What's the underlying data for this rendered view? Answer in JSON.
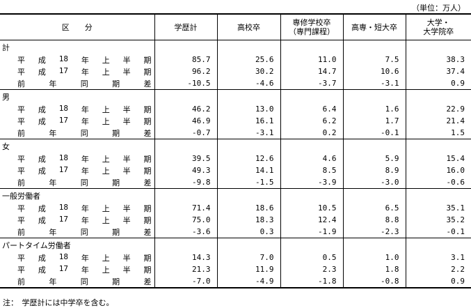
{
  "unit": "（単位：万人）",
  "header": {
    "category": "区　　分",
    "columns": [
      "学歴計",
      "高校卒",
      "専修学校卒（専門課程）",
      "高専・短大卒",
      "大学・大学院卒"
    ]
  },
  "row_labels": {
    "h18": [
      "平",
      "成",
      "18",
      "年",
      "上",
      "半",
      "期"
    ],
    "h17": [
      "平",
      "成",
      "17",
      "年",
      "上",
      "半",
      "期"
    ],
    "diff": [
      "前",
      "年",
      "同",
      "期",
      "差"
    ]
  },
  "groups": [
    {
      "name": "計",
      "rows": [
        [
          "85.7",
          "25.6",
          "11.0",
          "7.5",
          "38.3"
        ],
        [
          "96.2",
          "30.2",
          "14.7",
          "10.6",
          "37.4"
        ],
        [
          "-10.5",
          "-4.6",
          "-3.7",
          "-3.1",
          "0.9"
        ]
      ]
    },
    {
      "name": "男",
      "rows": [
        [
          "46.2",
          "13.0",
          "6.4",
          "1.6",
          "22.9"
        ],
        [
          "46.9",
          "16.1",
          "6.2",
          "1.7",
          "21.4"
        ],
        [
          "-0.7",
          "-3.1",
          "0.2",
          "-0.1",
          "1.5"
        ]
      ]
    },
    {
      "name": "女",
      "rows": [
        [
          "39.5",
          "12.6",
          "4.6",
          "5.9",
          "15.4"
        ],
        [
          "49.3",
          "14.1",
          "8.5",
          "8.9",
          "16.0"
        ],
        [
          "-9.8",
          "-1.5",
          "-3.9",
          "-3.0",
          "-0.6"
        ]
      ]
    },
    {
      "name": "一般労働者",
      "rows": [
        [
          "71.4",
          "18.6",
          "10.5",
          "6.5",
          "35.1"
        ],
        [
          "75.0",
          "18.3",
          "12.4",
          "8.8",
          "35.2"
        ],
        [
          "-3.6",
          "0.3",
          "-1.9",
          "-2.3",
          "-0.1"
        ]
      ]
    },
    {
      "name": "パートタイム労働者",
      "rows": [
        [
          "14.3",
          "7.0",
          "0.5",
          "1.0",
          "3.1"
        ],
        [
          "21.3",
          "11.9",
          "2.3",
          "1.8",
          "2.2"
        ],
        [
          "-7.0",
          "-4.9",
          "-1.8",
          "-0.8",
          "0.9"
        ]
      ]
    }
  ],
  "note": "注：　学歴計には中学卒を含む。"
}
